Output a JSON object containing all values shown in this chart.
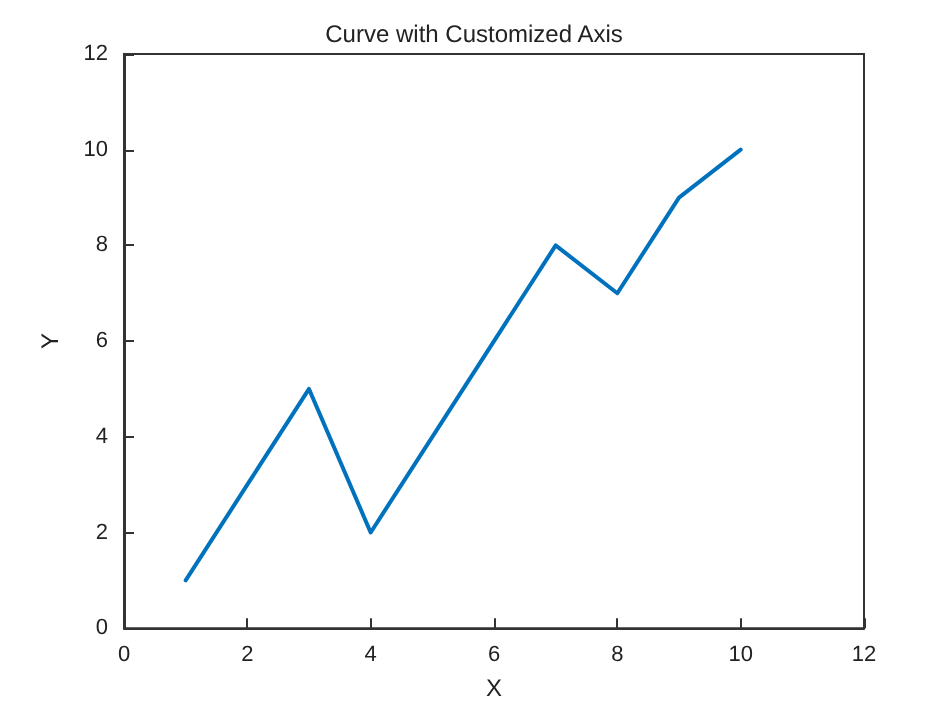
{
  "chart_data": {
    "type": "line",
    "title": "Curve with Customized Axis",
    "xlabel": "X",
    "ylabel": "Y",
    "x": [
      1,
      2,
      3,
      4,
      5,
      6,
      7,
      8,
      9,
      10
    ],
    "series": [
      {
        "color": "#0072bd",
        "values": [
          1,
          3,
          5,
          2,
          4,
          6,
          8,
          7,
          9,
          10
        ]
      }
    ],
    "xlim": [
      0,
      12
    ],
    "xticks": [
      0,
      2,
      4,
      6,
      8,
      10,
      12
    ],
    "ylim": [
      0,
      12
    ],
    "yticks": [
      0,
      2,
      4,
      6,
      8,
      10,
      12
    ],
    "grid": false,
    "marker": "none",
    "line_style": "solid"
  }
}
